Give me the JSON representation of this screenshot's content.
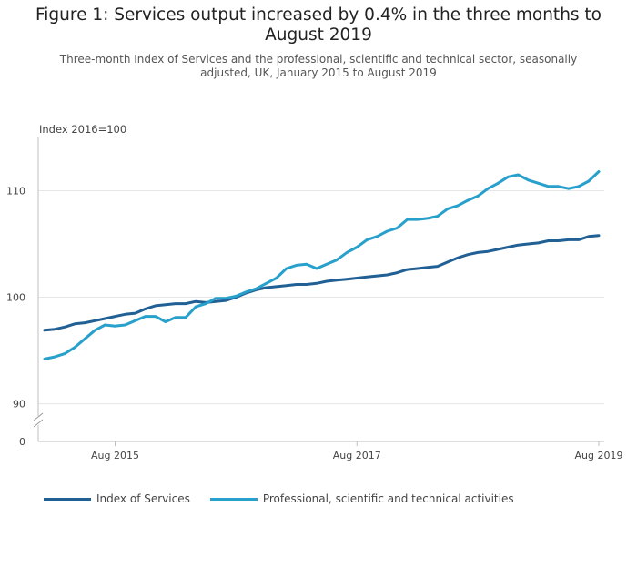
{
  "chart_data": {
    "type": "line",
    "title": "Figure 1: Services output increased by 0.4% in the three months to August 2019",
    "subtitle": "Three-month Index of Services and the professional, scientific and technical sector, seasonally adjusted, UK, January 2015 to August 2019",
    "ylabel": "Index 2016=100",
    "xlabel": "",
    "ylim": [
      88,
      115
    ],
    "yticks": [
      90,
      100,
      110
    ],
    "y_zero_label": "0",
    "axis_break": true,
    "x_start": "Jan 2015",
    "x_end": "Aug 2019",
    "xticks": [
      {
        "index": 7,
        "label": "Aug 2015"
      },
      {
        "index": 31,
        "label": "Aug 2017"
      },
      {
        "index": 55,
        "label": "Aug 2019"
      }
    ],
    "legend_position": "bottom-left",
    "series": [
      {
        "name": "Index of Services",
        "color": "#206095",
        "values": [
          96.9,
          97.0,
          97.2,
          97.5,
          97.6,
          97.8,
          98.0,
          98.2,
          98.4,
          98.5,
          98.9,
          99.2,
          99.3,
          99.4,
          99.4,
          99.6,
          99.5,
          99.6,
          99.7,
          100.0,
          100.4,
          100.7,
          100.9,
          101.0,
          101.1,
          101.2,
          101.2,
          101.3,
          101.5,
          101.6,
          101.7,
          101.8,
          101.9,
          102.0,
          102.1,
          102.3,
          102.6,
          102.7,
          102.8,
          102.9,
          103.3,
          103.7,
          104.0,
          104.2,
          104.3,
          104.5,
          104.7,
          104.9,
          105.0,
          105.1,
          105.3,
          105.3,
          105.4,
          105.4,
          105.7,
          105.8
        ]
      },
      {
        "name": "Professional, scientific and technical activities",
        "color": "#27a0cc",
        "values": [
          94.2,
          94.4,
          94.7,
          95.3,
          96.1,
          96.9,
          97.4,
          97.3,
          97.4,
          97.8,
          98.2,
          98.2,
          97.7,
          98.1,
          98.1,
          99.1,
          99.4,
          99.9,
          99.9,
          100.1,
          100.5,
          100.8,
          101.3,
          101.8,
          102.7,
          103.0,
          103.1,
          102.7,
          103.1,
          103.5,
          104.2,
          104.7,
          105.4,
          105.7,
          106.2,
          106.5,
          107.3,
          107.3,
          107.4,
          107.6,
          108.3,
          108.6,
          109.1,
          109.5,
          110.2,
          110.7,
          111.3,
          111.5,
          111.0,
          110.7,
          110.4,
          110.4,
          110.2,
          110.4,
          110.9,
          111.8
        ]
      }
    ]
  }
}
